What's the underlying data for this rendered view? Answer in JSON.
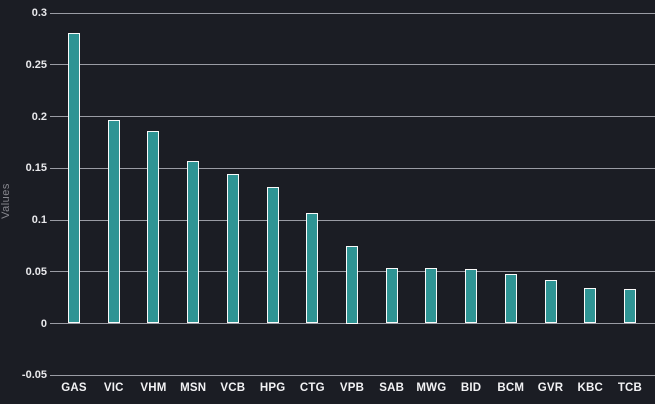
{
  "chart_data": {
    "type": "bar",
    "title": "",
    "xlabel": "",
    "ylabel": "Values",
    "categories": [
      "GAS",
      "VIC",
      "VHM",
      "MSN",
      "VCB",
      "HPG",
      "CTG",
      "VPB",
      "SAB",
      "MWG",
      "BID",
      "BCM",
      "GVR",
      "KBC",
      "TCB"
    ],
    "values": [
      0.281,
      0.197,
      0.186,
      0.157,
      0.144,
      0.132,
      0.107,
      0.075,
      0.054,
      0.054,
      0.053,
      0.048,
      0.042,
      0.034,
      0.033
    ],
    "ylim": [
      -0.05,
      0.3
    ],
    "yticks": [
      0.3,
      0.25,
      0.2,
      0.15,
      0.1,
      0.05,
      0,
      -0.05
    ],
    "ytick_labels": [
      "0.3",
      "0.25",
      "0.2",
      "0.15",
      "0.1",
      "0.05",
      "0",
      "-0.05"
    ],
    "grid": true,
    "legend": false,
    "series_color": "#2f9494"
  },
  "colors": {
    "background": "#1b1d24",
    "bar_fill": "#2f9494",
    "bar_border": "#fafafa",
    "gridline": "#9a9ca4",
    "ytick_label": "#e9e9ec",
    "xtick_label": "#f2f2f4",
    "axis_label": "#87878e"
  }
}
